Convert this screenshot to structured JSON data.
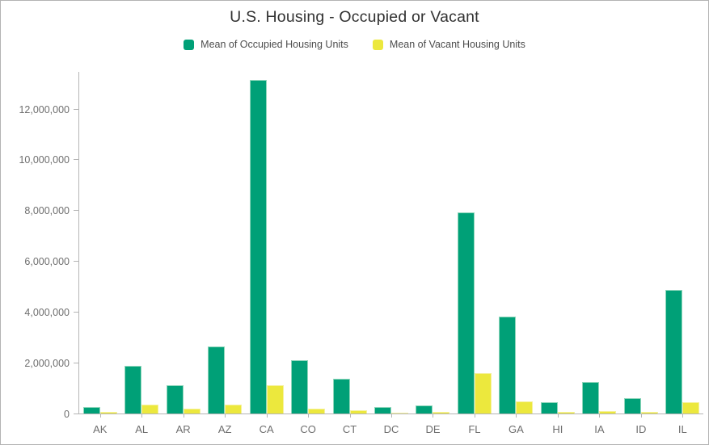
{
  "chart_data": {
    "type": "bar",
    "title": "U.S. Housing - Occupied or Vacant",
    "categories": [
      "AK",
      "AL",
      "AR",
      "AZ",
      "CA",
      "CO",
      "CT",
      "DC",
      "DE",
      "FL",
      "GA",
      "HI",
      "IA",
      "ID",
      "IL"
    ],
    "series": [
      {
        "name": "Mean of Occupied Housing Units",
        "color": "#00a077",
        "edge_color": "#8fd6bb",
        "values": [
          270000,
          1880000,
          1130000,
          2630000,
          13150000,
          2110000,
          1360000,
          260000,
          335000,
          7950000,
          3840000,
          435000,
          1230000,
          610000,
          4870000
        ]
      },
      {
        "name": "Mean of Vacant Housing Units",
        "color": "#ece83d",
        "edge_color": "#f5f19b",
        "values": [
          50000,
          340000,
          180000,
          360000,
          1100000,
          200000,
          125000,
          30000,
          60000,
          1600000,
          465000,
          50000,
          105000,
          70000,
          450000
        ]
      }
    ],
    "yticks": [
      {
        "label": "0",
        "value": 0
      },
      {
        "label": "2,000,000",
        "value": 2000000
      },
      {
        "label": "4,000,000",
        "value": 4000000
      },
      {
        "label": "6,000,000",
        "value": 6000000
      },
      {
        "label": "8,000,000",
        "value": 8000000
      },
      {
        "label": "10,000,000",
        "value": 10000000
      },
      {
        "label": "12,000,000",
        "value": 12000000
      }
    ],
    "ylim": [
      0,
      13480000
    ],
    "xlabel": "",
    "ylabel": "",
    "grid": false,
    "legend_position": "top",
    "axis_color": "#b5b5b5",
    "tick_label_color": "#6e6e6e"
  }
}
